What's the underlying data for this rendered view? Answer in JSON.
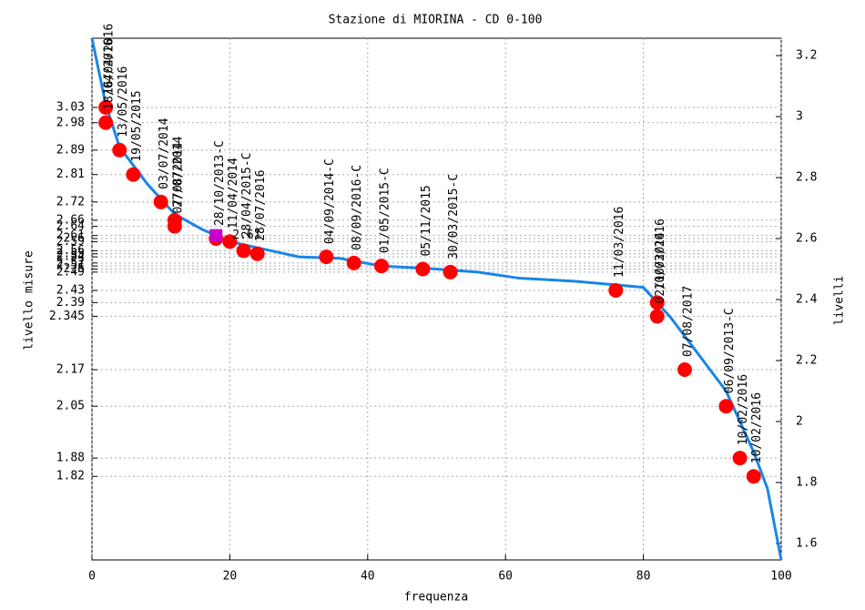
{
  "chart_data": {
    "type": "line",
    "title": "Stazione di MIORINA - CD 0-100",
    "x_label": "frequenza",
    "y_label": "livello misure",
    "y2_label": "livelli",
    "xlim": [
      0,
      100
    ],
    "xticks": [
      0,
      20,
      40,
      60,
      80,
      100
    ],
    "ylim": [
      1.546,
      3.257
    ],
    "yticks": [
      3.03,
      2.98,
      2.89,
      2.81,
      2.72,
      2.66,
      2.64,
      2.61,
      2.6,
      2.59,
      2.56,
      2.55,
      2.54,
      2.52,
      2.51,
      2.5,
      2.49,
      2.43,
      2.39,
      2.345,
      2.17,
      2.05,
      1.88,
      1.82
    ],
    "y2lim": [
      1.546,
      3.257
    ],
    "y2ticks": [
      1.6,
      1.8,
      2,
      2.2,
      2.4,
      2.6,
      2.8,
      3,
      3.2
    ],
    "grid": true,
    "series": [
      {
        "name": "curva",
        "color": "#1a86e6",
        "x": [
          0,
          2,
          4,
          8,
          12,
          16,
          20,
          26,
          30,
          36,
          42,
          50,
          56,
          62,
          70,
          80,
          84,
          88,
          92,
          96,
          98,
          100
        ],
        "values": [
          3.257,
          3.04,
          2.9,
          2.78,
          2.68,
          2.63,
          2.59,
          2.56,
          2.54,
          2.535,
          2.51,
          2.5,
          2.49,
          2.47,
          2.46,
          2.44,
          2.34,
          2.22,
          2.1,
          1.9,
          1.78,
          1.546
        ]
      },
      {
        "name": "misure",
        "color": "#ff0000",
        "x": [
          2,
          2,
          4,
          6,
          10,
          12,
          12,
          18,
          20,
          22,
          24,
          34,
          38,
          42,
          48,
          52,
          76,
          82,
          82,
          86,
          92,
          94,
          96
        ],
        "values": [
          3.03,
          2.98,
          2.89,
          2.81,
          2.72,
          2.66,
          2.64,
          2.6,
          2.59,
          2.56,
          2.55,
          2.54,
          2.52,
          2.51,
          2.5,
          2.49,
          2.43,
          2.39,
          2.345,
          2.17,
          2.05,
          1.88,
          1.82
        ],
        "labels": [
          "16/04/2016",
          "18/04/2016",
          "13/05/2016",
          "19/05/2015",
          "03/07/2014",
          "27/07/2014",
          "07/08/2014",
          "28/10/2013-C",
          "11/04/2014",
          "28/04/2015-C",
          "28/07/2016",
          "04/09/2014-C",
          "08/09/2016-C",
          "01/05/2015-C",
          "05/11/2015",
          "30/03/2015-C",
          "11/03/2016",
          "10/03/2016",
          "02/10/2014",
          "07/08/2017",
          "06/09/2013-C",
          "10/02/2016",
          "10/02/2016"
        ]
      },
      {
        "name": "attuale",
        "color": "#cc00cc",
        "x": [
          18
        ],
        "values": [
          2.61
        ],
        "labels": [
          "2.61"
        ]
      }
    ]
  }
}
